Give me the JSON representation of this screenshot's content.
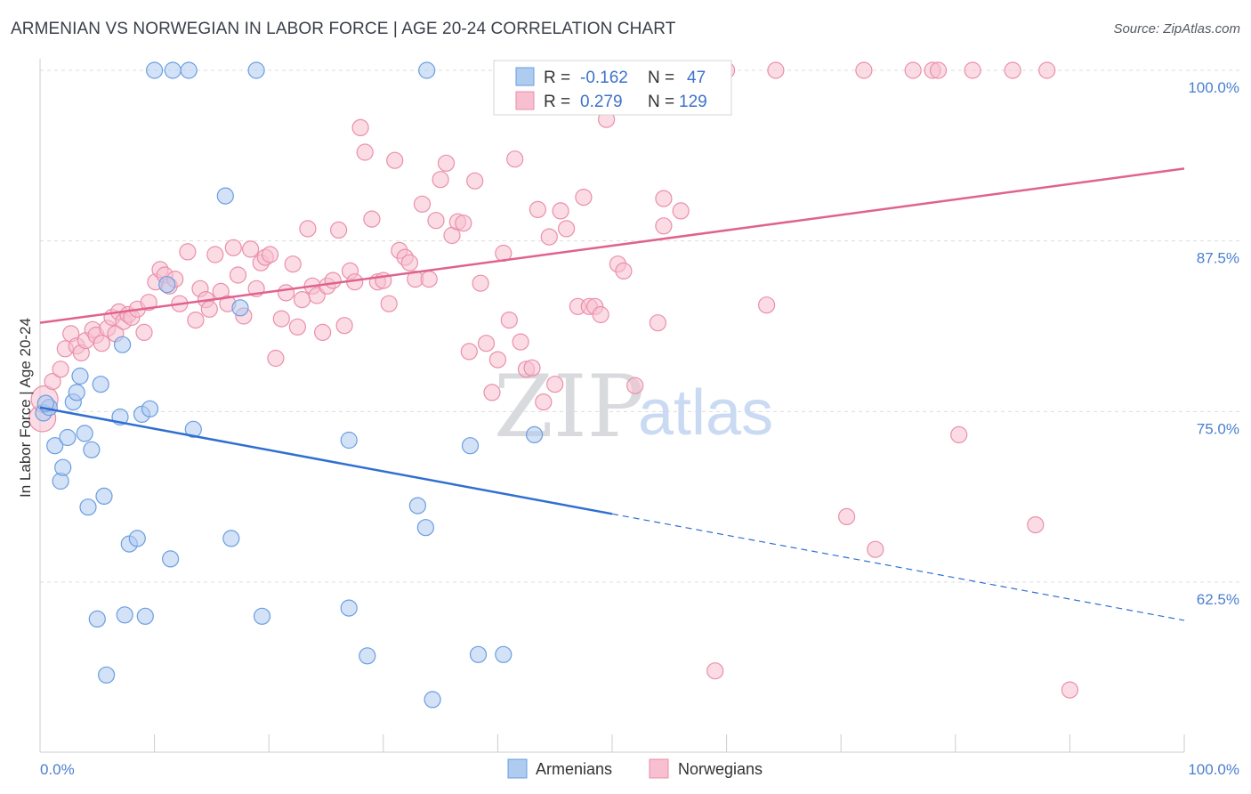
{
  "title": "ARMENIAN VS NORWEGIAN IN LABOR FORCE | AGE 20-24 CORRELATION CHART",
  "source": "Source: ZipAtlas.com",
  "watermark": {
    "zip": "ZIP",
    "atlas": "atlas"
  },
  "colors": {
    "armenian_fill": "#aecbf0",
    "armenian_stroke": "#6a9ee0",
    "armenian_line": "#2f6fd1",
    "norwegian_fill": "#f7bfd0",
    "norwegian_stroke": "#ea8fab",
    "norwegian_line": "#e0628f",
    "grid": "#dddddd",
    "tick_text": "#4a7fd0"
  },
  "legend": {
    "rows": [
      {
        "r_label": "R =",
        "r_value": "-0.162",
        "n_label": "N =",
        "n_value": "47"
      },
      {
        "r_label": "R =",
        "r_value": "0.279",
        "n_label": "N =",
        "n_value": "129"
      }
    ]
  },
  "bottom_legend": [
    "Armenians",
    "Norwegians"
  ],
  "chart_data": {
    "type": "scatter",
    "ylabel": "In Labor Force | Age 20-24",
    "xlabel": "",
    "xlim": [
      0,
      100
    ],
    "ylim": [
      52.3,
      102.4
    ],
    "x_tick_labels": [
      "0.0%",
      "100.0%"
    ],
    "y_ticks": [
      62.5,
      75.0,
      87.5,
      100.0
    ],
    "y_tick_labels": [
      "62.5%",
      "75.0%",
      "87.5%",
      "100.0%"
    ],
    "grid": true,
    "series": [
      {
        "name": "Armenians",
        "r": -0.162,
        "n": 47,
        "trend": {
          "x0": 0,
          "y0": 75.3,
          "x1": 50,
          "y1": 67.5,
          "solid_until": 50,
          "dashed_to": 100,
          "y_end": 59.7
        },
        "points": [
          [
            0.3,
            74.9
          ],
          [
            0.8,
            75.3
          ],
          [
            1.3,
            72.5
          ],
          [
            1.8,
            69.9
          ],
          [
            2.0,
            70.9
          ],
          [
            2.4,
            73.1
          ],
          [
            2.9,
            75.7
          ],
          [
            3.2,
            76.4
          ],
          [
            3.5,
            77.6
          ],
          [
            3.9,
            73.4
          ],
          [
            4.2,
            68.0
          ],
          [
            4.5,
            72.2
          ],
          [
            5.3,
            77.0
          ],
          [
            5.6,
            68.8
          ],
          [
            5.8,
            55.7
          ],
          [
            5.0,
            59.8
          ],
          [
            7.0,
            74.6
          ],
          [
            7.2,
            79.9
          ],
          [
            7.4,
            60.1
          ],
          [
            7.8,
            65.3
          ],
          [
            8.5,
            65.7
          ],
          [
            8.9,
            74.8
          ],
          [
            9.2,
            60.0
          ],
          [
            9.6,
            75.2
          ],
          [
            10.0,
            100.0
          ],
          [
            11.1,
            84.3
          ],
          [
            11.4,
            64.2
          ],
          [
            11.6,
            100.0
          ],
          [
            13.0,
            100.0
          ],
          [
            13.4,
            73.7
          ],
          [
            16.2,
            90.8
          ],
          [
            16.7,
            65.7
          ],
          [
            17.5,
            82.6
          ],
          [
            18.9,
            100.0
          ],
          [
            19.4,
            60.0
          ],
          [
            27.0,
            72.9
          ],
          [
            27.0,
            60.6
          ],
          [
            28.6,
            57.1
          ],
          [
            33.0,
            68.1
          ],
          [
            33.7,
            66.5
          ],
          [
            33.8,
            100.0
          ],
          [
            34.3,
            53.9
          ],
          [
            37.6,
            72.5
          ],
          [
            38.3,
            57.2
          ],
          [
            40.5,
            57.2
          ],
          [
            43.2,
            73.3
          ],
          [
            0.5,
            75.6
          ]
        ]
      },
      {
        "name": "Norwegians",
        "r": 0.279,
        "n": 129,
        "trend": {
          "x0": 0,
          "y0": 81.5,
          "x1": 100,
          "y1": 92.8
        },
        "points": [
          [
            0.2,
            74.5
          ],
          [
            0.4,
            75.9
          ],
          [
            1.1,
            77.2
          ],
          [
            1.8,
            78.1
          ],
          [
            2.2,
            79.6
          ],
          [
            2.7,
            80.7
          ],
          [
            3.2,
            79.8
          ],
          [
            3.6,
            79.3
          ],
          [
            4.0,
            80.2
          ],
          [
            4.6,
            81.0
          ],
          [
            4.9,
            80.6
          ],
          [
            5.4,
            80.0
          ],
          [
            5.9,
            81.1
          ],
          [
            6.3,
            81.9
          ],
          [
            6.6,
            80.7
          ],
          [
            6.9,
            82.3
          ],
          [
            7.3,
            81.6
          ],
          [
            7.7,
            82.1
          ],
          [
            8.0,
            81.9
          ],
          [
            8.5,
            82.5
          ],
          [
            9.1,
            80.8
          ],
          [
            9.5,
            83.0
          ],
          [
            10.1,
            84.5
          ],
          [
            10.5,
            85.4
          ],
          [
            10.9,
            85.0
          ],
          [
            11.3,
            84.2
          ],
          [
            11.8,
            84.7
          ],
          [
            12.2,
            82.9
          ],
          [
            12.9,
            86.7
          ],
          [
            13.6,
            81.7
          ],
          [
            14.0,
            84.0
          ],
          [
            14.5,
            83.2
          ],
          [
            14.8,
            82.5
          ],
          [
            15.3,
            86.5
          ],
          [
            15.8,
            83.8
          ],
          [
            16.4,
            82.9
          ],
          [
            16.9,
            87.0
          ],
          [
            17.3,
            85.0
          ],
          [
            17.8,
            82.0
          ],
          [
            18.4,
            86.9
          ],
          [
            18.9,
            84.0
          ],
          [
            19.3,
            85.9
          ],
          [
            19.7,
            86.3
          ],
          [
            20.1,
            86.5
          ],
          [
            20.6,
            78.9
          ],
          [
            21.1,
            81.8
          ],
          [
            21.5,
            83.7
          ],
          [
            22.1,
            85.8
          ],
          [
            22.5,
            81.2
          ],
          [
            22.9,
            83.2
          ],
          [
            23.4,
            88.4
          ],
          [
            23.8,
            84.2
          ],
          [
            24.2,
            83.5
          ],
          [
            24.7,
            80.8
          ],
          [
            25.1,
            84.2
          ],
          [
            25.6,
            84.6
          ],
          [
            26.1,
            88.3
          ],
          [
            26.6,
            81.3
          ],
          [
            27.1,
            85.3
          ],
          [
            27.5,
            84.5
          ],
          [
            28.0,
            95.8
          ],
          [
            28.4,
            94.0
          ],
          [
            29.0,
            89.1
          ],
          [
            29.5,
            84.5
          ],
          [
            30.0,
            84.6
          ],
          [
            30.5,
            82.9
          ],
          [
            31.0,
            93.4
          ],
          [
            31.4,
            86.8
          ],
          [
            31.9,
            86.3
          ],
          [
            32.3,
            85.9
          ],
          [
            32.8,
            84.7
          ],
          [
            33.4,
            90.2
          ],
          [
            34.0,
            84.7
          ],
          [
            34.6,
            89.0
          ],
          [
            35.0,
            92.0
          ],
          [
            35.5,
            93.2
          ],
          [
            36.0,
            87.9
          ],
          [
            36.5,
            88.9
          ],
          [
            37.0,
            88.8
          ],
          [
            37.5,
            79.4
          ],
          [
            38.0,
            91.9
          ],
          [
            38.5,
            84.4
          ],
          [
            39.0,
            80.0
          ],
          [
            39.5,
            76.4
          ],
          [
            40.0,
            78.8
          ],
          [
            40.5,
            86.6
          ],
          [
            41.0,
            81.7
          ],
          [
            41.5,
            93.5
          ],
          [
            42.0,
            80.1
          ],
          [
            42.5,
            78.1
          ],
          [
            43.0,
            78.2
          ],
          [
            43.5,
            89.8
          ],
          [
            44.0,
            75.7
          ],
          [
            44.5,
            87.8
          ],
          [
            45.0,
            77.0
          ],
          [
            45.5,
            89.7
          ],
          [
            46.0,
            88.4
          ],
          [
            46.5,
            100.0
          ],
          [
            47.0,
            82.7
          ],
          [
            47.5,
            90.7
          ],
          [
            48.0,
            82.7
          ],
          [
            48.5,
            82.7
          ],
          [
            49.0,
            82.1
          ],
          [
            49.5,
            96.4
          ],
          [
            50.5,
            85.8
          ],
          [
            51.0,
            85.3
          ],
          [
            52.0,
            76.9
          ],
          [
            53.0,
            100.0
          ],
          [
            54.0,
            81.5
          ],
          [
            54.5,
            90.6
          ],
          [
            54.5,
            88.6
          ],
          [
            56.0,
            89.7
          ],
          [
            56.5,
            100.0
          ],
          [
            58.0,
            100.0
          ],
          [
            59.0,
            56.0
          ],
          [
            60.0,
            100.0
          ],
          [
            63.5,
            82.8
          ],
          [
            64.3,
            100.0
          ],
          [
            70.5,
            67.3
          ],
          [
            72.0,
            100.0
          ],
          [
            73.0,
            64.9
          ],
          [
            76.3,
            100.0
          ],
          [
            78.0,
            100.0
          ],
          [
            78.5,
            100.0
          ],
          [
            80.3,
            73.3
          ],
          [
            81.5,
            100.0
          ],
          [
            85.0,
            100.0
          ],
          [
            87.0,
            66.7
          ],
          [
            88.0,
            100.0
          ],
          [
            90.0,
            54.6
          ]
        ]
      }
    ]
  }
}
